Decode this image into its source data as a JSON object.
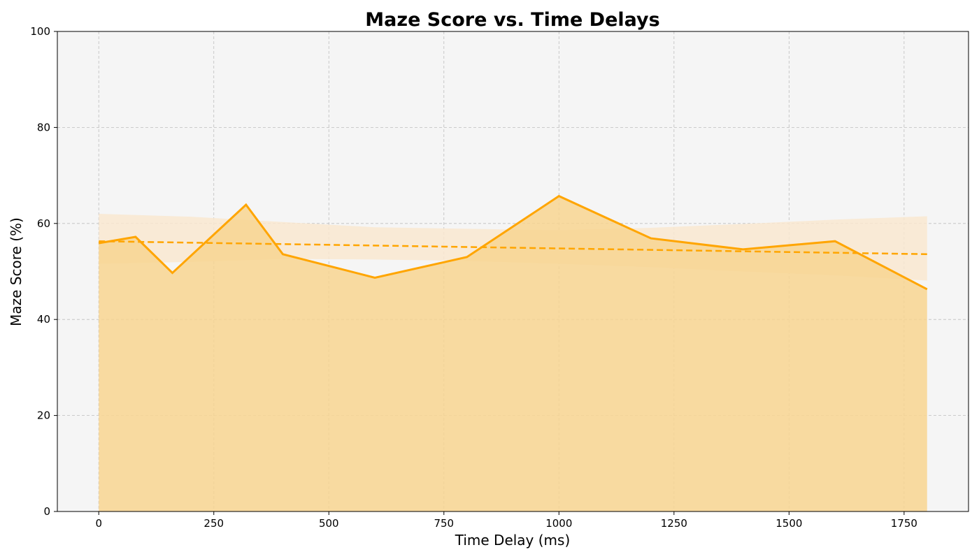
{
  "chart_data": {
    "type": "line",
    "title": "Maze Score vs. Time Delays",
    "xlabel": "Time Delay (ms)",
    "ylabel": "Maze Score (%)",
    "xlim": [
      -90,
      1890
    ],
    "ylim": [
      0,
      100
    ],
    "x_ticks": [
      0,
      250,
      500,
      750,
      1000,
      1250,
      1500,
      1750
    ],
    "y_ticks": [
      0,
      20,
      40,
      60,
      80,
      100
    ],
    "grid": true,
    "series": [
      {
        "kind": "line-with-fill",
        "x": [
          0,
          80,
          160,
          320,
          400,
          600,
          800,
          1000,
          1200,
          1400,
          1600,
          1800
        ],
        "values": [
          55.9,
          57.2,
          49.7,
          63.9,
          53.6,
          48.7,
          53.0,
          65.7,
          56.9,
          54.6,
          56.3,
          46.3
        ],
        "color": "#FFA500"
      },
      {
        "kind": "trend",
        "x": [
          0,
          1800
        ],
        "values": [
          56.3,
          53.6
        ],
        "color": "#FFA500"
      },
      {
        "kind": "confidence-band",
        "x": [
          0,
          200,
          400,
          600,
          800,
          1000,
          1200,
          1400,
          1600,
          1800
        ],
        "lower": [
          51.6,
          52.0,
          52.6,
          52.5,
          52.2,
          51.6,
          50.9,
          50.0,
          49.2,
          48.1
        ],
        "upper": [
          62.0,
          61.4,
          60.3,
          59.2,
          58.9,
          58.6,
          59.1,
          59.9,
          60.8,
          61.5
        ],
        "color": "#FFA500"
      }
    ],
    "colors": {
      "plot_background": "#f5f5f5",
      "line": "#FFA500",
      "area_fill": "#f8d591",
      "band_fill": "#f9e8d0"
    }
  }
}
